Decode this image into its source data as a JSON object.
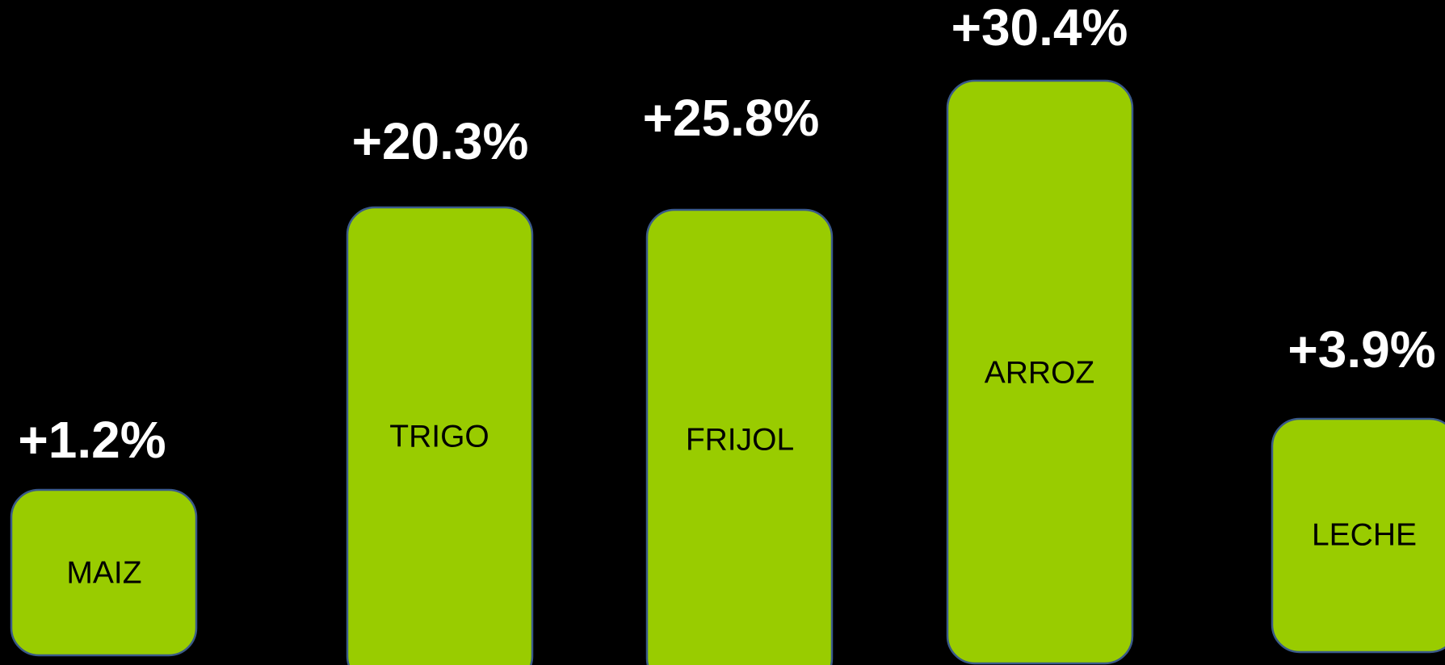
{
  "items": [
    {
      "label": "MAIZ",
      "value": "+1.2%"
    },
    {
      "label": "TRIGO",
      "value": "+20.3%"
    },
    {
      "label": "FRIJOL",
      "value": "+25.8%"
    },
    {
      "label": "ARROZ",
      "value": "+30.4%"
    },
    {
      "label": "LECHE",
      "value": "+3.9%"
    }
  ]
}
